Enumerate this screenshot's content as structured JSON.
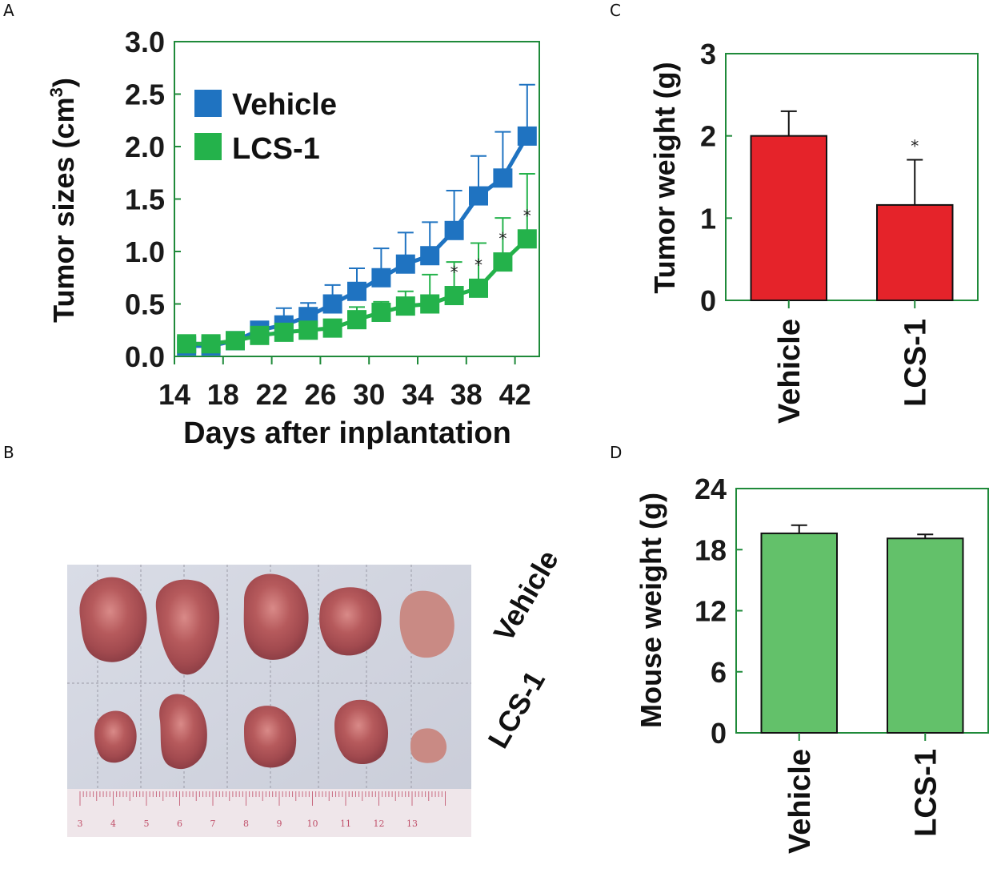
{
  "panel_letters": {
    "a": "A",
    "b": "B",
    "c": "C",
    "d": "D"
  },
  "colors": {
    "vehicle_line": "#1f73c1",
    "lcs_line": "#24b24b",
    "tumor_bar": "#e5232a",
    "mouse_bar": "#63c16a",
    "axis_frame": "#1f8a3a"
  },
  "chart_data": [
    {
      "id": "A",
      "type": "line",
      "title": "",
      "xlabel": "Days after inplantation",
      "ylabel_main": "Tumor sizes (cm",
      "ylabel_sup": "3",
      "ylabel_close": ")",
      "xlim": [
        14,
        44
      ],
      "ylim": [
        0,
        3.0
      ],
      "xticks": [
        "14",
        "18",
        "22",
        "26",
        "30",
        "34",
        "38",
        "42"
      ],
      "xtick_values": [
        14,
        18,
        22,
        26,
        30,
        34,
        38,
        42
      ],
      "yticks": [
        "0.0",
        "0.5",
        "1.0",
        "1.5",
        "2.0",
        "2.5",
        "3.0"
      ],
      "ytick_values": [
        0,
        0.5,
        1.0,
        1.5,
        2.0,
        2.5,
        3.0
      ],
      "legend": [
        "Vehicle",
        "LCS-1"
      ],
      "significance_marker": "*",
      "x": [
        15,
        17,
        19,
        21,
        23,
        25,
        27,
        29,
        31,
        33,
        35,
        37,
        39,
        41,
        43
      ],
      "series": [
        {
          "name": "Vehicle",
          "values": [
            0.1,
            0.1,
            0.15,
            0.25,
            0.3,
            0.38,
            0.5,
            0.62,
            0.75,
            0.88,
            0.96,
            1.2,
            1.53,
            1.7,
            2.1
          ],
          "errors": [
            0.0,
            0.0,
            0.0,
            0.08,
            0.16,
            0.13,
            0.18,
            0.22,
            0.28,
            0.3,
            0.32,
            0.38,
            0.38,
            0.44,
            0.49
          ]
        },
        {
          "name": "LCS-1",
          "values": [
            0.12,
            0.12,
            0.15,
            0.2,
            0.23,
            0.25,
            0.27,
            0.35,
            0.42,
            0.48,
            0.5,
            0.58,
            0.65,
            0.9,
            1.12
          ],
          "errors": [
            0.0,
            0.0,
            0.0,
            0.0,
            0.0,
            0.0,
            0.0,
            0.12,
            0.1,
            0.14,
            0.28,
            0.32,
            0.43,
            0.42,
            0.62
          ]
        }
      ],
      "significant_x": [
        37,
        39,
        41,
        43
      ]
    },
    {
      "id": "C",
      "type": "bar",
      "ylabel": "Tumor weight (g)",
      "categories": [
        "Vehicle",
        "LCS-1"
      ],
      "values": [
        2.0,
        1.16
      ],
      "errors": [
        0.3,
        0.55
      ],
      "ylim": [
        0,
        3
      ],
      "yticks": [
        "0",
        "1",
        "2",
        "3"
      ],
      "ytick_values": [
        0,
        1,
        2,
        3
      ],
      "significance_marker": "*",
      "significant": [
        false,
        true
      ]
    },
    {
      "id": "D",
      "type": "bar",
      "ylabel": "Mouse weight (g)",
      "categories": [
        "Vehicle",
        "LCS-1"
      ],
      "values": [
        19.6,
        19.1
      ],
      "errors": [
        0.8,
        0.4
      ],
      "ylim": [
        0,
        24
      ],
      "yticks": [
        "0",
        "6",
        "12",
        "18",
        "24"
      ],
      "ytick_values": [
        0,
        6,
        12,
        18,
        24
      ]
    }
  ],
  "photo": {
    "row_labels": [
      "Vehicle",
      "LCS-1"
    ],
    "ruler_numbers": [
      "3",
      "4",
      "5",
      "6",
      "7",
      "8",
      "9",
      "10",
      "11",
      "12",
      "13"
    ]
  }
}
